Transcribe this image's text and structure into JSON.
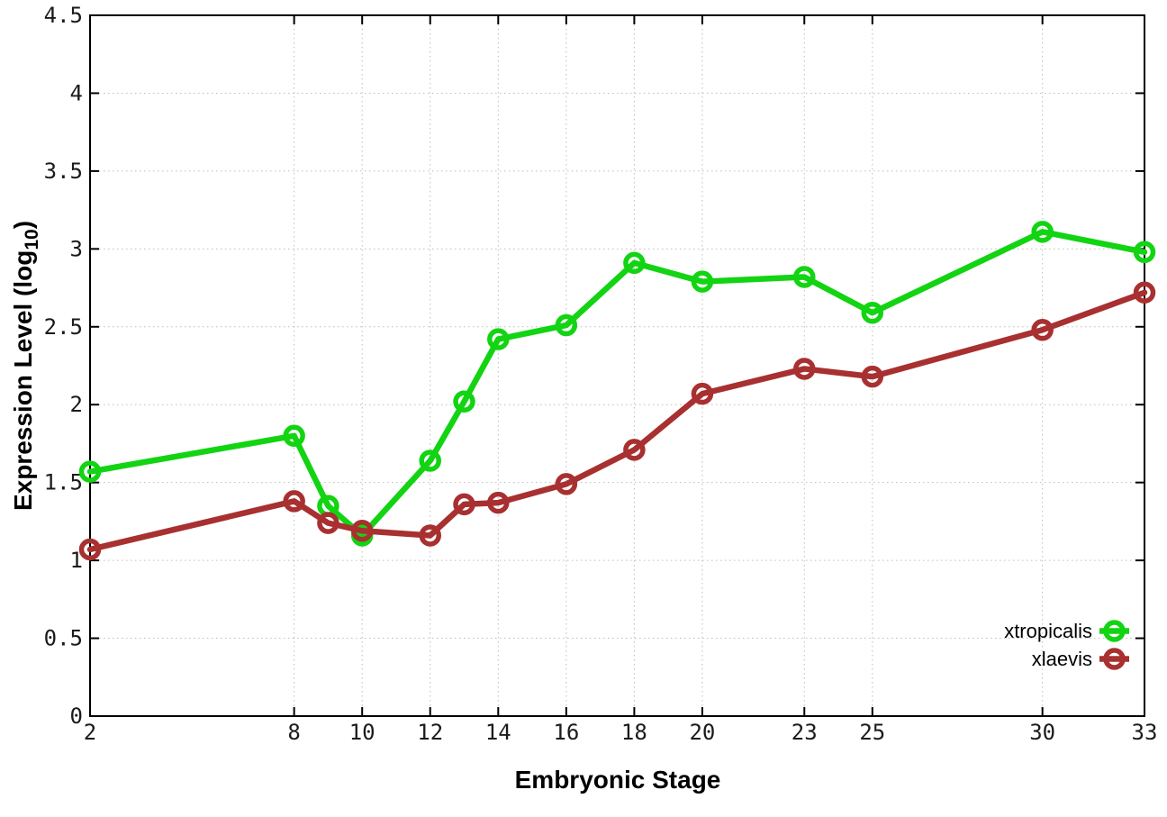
{
  "figure": {
    "xlabel": "Embryonic Stage",
    "ylabel_prefix": "Expression Level (log",
    "ylabel_sub": "10",
    "ylabel_suffix": ")"
  },
  "legend": {
    "items": [
      {
        "label": "xtropicalis",
        "color": "#12d412"
      },
      {
        "label": "xlaevis",
        "color": "#a83030"
      }
    ]
  },
  "colors": {
    "grid": "#bdbdbd",
    "axis": "#000000",
    "background": "#ffffff",
    "xtropicalis": "#12d412",
    "xlaevis": "#a83030"
  },
  "chart_data": {
    "type": "line",
    "title": "",
    "xlabel": "Embryonic Stage",
    "ylabel": "Expression Level (log10)",
    "xlim": [
      2,
      33
    ],
    "ylim": [
      0,
      4.5
    ],
    "grid": true,
    "legend_position": "inside-bottom-right",
    "marker": "open-circle",
    "x": [
      2,
      8,
      9,
      10,
      12,
      13,
      14,
      16,
      18,
      20,
      23,
      25,
      30,
      33
    ],
    "xtick_labels": [
      "2",
      "8",
      "10",
      "12",
      "14",
      "16",
      "18",
      "20",
      "23",
      "25",
      "30",
      "33"
    ],
    "xticks": [
      2,
      8,
      10,
      12,
      14,
      16,
      18,
      20,
      23,
      25,
      30,
      33
    ],
    "yticks": [
      0,
      0.5,
      1,
      1.5,
      2,
      2.5,
      3,
      3.5,
      4,
      4.5
    ],
    "ytick_labels": [
      "0",
      "0.5",
      "1",
      "1.5",
      "2",
      "2.5",
      "3",
      "3.5",
      "4",
      "4.5"
    ],
    "series": [
      {
        "name": "xtropicalis",
        "color": "#12d412",
        "values": [
          1.57,
          1.8,
          1.35,
          1.16,
          1.64,
          2.02,
          2.42,
          2.51,
          2.91,
          2.79,
          2.82,
          2.59,
          3.11,
          2.98
        ]
      },
      {
        "name": "xlaevis",
        "color": "#a83030",
        "values": [
          1.07,
          1.38,
          1.24,
          1.19,
          1.16,
          1.36,
          1.37,
          1.49,
          1.71,
          2.07,
          2.23,
          2.18,
          2.48,
          2.72
        ]
      }
    ]
  }
}
